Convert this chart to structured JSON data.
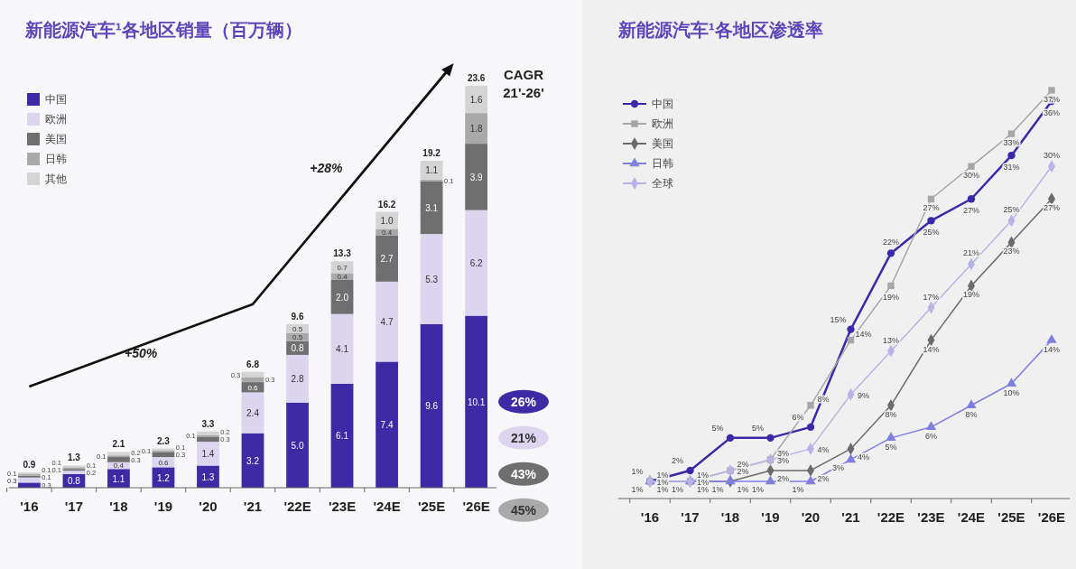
{
  "chart_data": [
    {
      "type": "bar",
      "stacked": true,
      "title": "新能源汽车¹各地区销量（百万辆）",
      "legend": "top left",
      "categories": [
        "'16",
        "'17",
        "'18",
        "'19",
        "'20",
        "'21",
        "'22E",
        "'23E",
        "'24E",
        "'25E",
        "'26E"
      ],
      "series": [
        {
          "name": "中国",
          "color": "#3f2aa6",
          "values": [
            0.3,
            0.8,
            1.1,
            1.2,
            1.3,
            3.2,
            5.0,
            6.1,
            7.4,
            9.6,
            10.1
          ],
          "value_labels": [
            "0.3",
            "0.8",
            "1.1",
            "1.2",
            "1.3",
            "3.2",
            "5.0",
            "6.1",
            "7.4",
            "9.6",
            "10.1"
          ]
        },
        {
          "name": "欧洲",
          "color": "#dcd5ef",
          "values": [
            0.3,
            0.2,
            0.4,
            0.6,
            1.4,
            2.4,
            2.8,
            4.1,
            4.7,
            5.3,
            6.2
          ],
          "value_labels": [
            "0.3",
            "0.2",
            "0.4",
            "0.6",
            "1.4",
            "2.4",
            "2.8",
            "4.1",
            "4.7",
            "5.3",
            "6.2"
          ]
        },
        {
          "name": "美国",
          "color": "#6f6f6f",
          "values": [
            0.1,
            0.1,
            0.3,
            0.3,
            0.3,
            0.6,
            0.8,
            2.0,
            2.7,
            3.1,
            3.9
          ],
          "value_labels": [
            "0.1",
            "0.1",
            "0.3",
            "0.3",
            "0.3",
            "0.6",
            "0.8",
            "2.0",
            "2.7",
            "3.1",
            "3.9"
          ]
        },
        {
          "name": "日韩",
          "color": "#a9a9a9",
          "values": [
            0.1,
            0.1,
            0.1,
            0.1,
            0.1,
            0.3,
            0.5,
            0.4,
            0.4,
            0.1,
            1.8
          ],
          "value_labels": [
            "0.1",
            "0.1",
            "0.1",
            "0.1",
            "0.1",
            "0.3",
            "0.5",
            "0.4",
            "0.4",
            "0.1",
            "1.8"
          ]
        },
        {
          "name": "其他",
          "color": "#d4d4d4",
          "values": [
            0.1,
            0.1,
            0.2,
            0.1,
            0.2,
            0.3,
            0.5,
            0.7,
            1.0,
            1.1,
            1.6
          ],
          "value_labels": [
            "0.1",
            "0.1",
            "0.2",
            "0.1",
            "0.2",
            "0.3",
            "0.5",
            "0.7",
            "1.0",
            "1.1",
            "1.6"
          ]
        }
      ],
      "totals": [
        "0.9",
        "1.3",
        "2.1",
        "2.3",
        "3.3",
        "6.8",
        "9.6",
        "13.3",
        "16.2",
        "19.2",
        "23.6"
      ],
      "annotations": [
        "CAGR\n21'-26'",
        "+50%",
        "+28%",
        "26%",
        "21%",
        "43%",
        "45%"
      ]
    },
    {
      "type": "line",
      "title": "新能源汽车¹各地区渗透率",
      "legend": "top left",
      "categories": [
        "'16",
        "'17",
        "'18",
        "'19",
        "'20",
        "'21",
        "'22E",
        "'23E",
        "'24E",
        "'25E",
        "'26E"
      ],
      "series": [
        {
          "name": "中国",
          "color": "#3b2aa8",
          "marker": "circle",
          "values": [
            1,
            2,
            5,
            5,
            6,
            15,
            22,
            25,
            27,
            31,
            36
          ],
          "value_labels": [
            "1%",
            "2%",
            "5%",
            "5%",
            "6%",
            "15%",
            "22%",
            "25%",
            "27%",
            "31%",
            "36%"
          ]
        },
        {
          "name": "欧洲",
          "color": "#a6a6a6",
          "marker": "square",
          "values": [
            1,
            1,
            2,
            3,
            8,
            14,
            19,
            27,
            30,
            33,
            37
          ],
          "value_labels": [
            "1%",
            "1%",
            "2%",
            "3%",
            "8%",
            "14%",
            "19%",
            "27%",
            "30%",
            "33%",
            "37%"
          ]
        },
        {
          "name": "美国",
          "color": "#6b6b6b",
          "marker": "diamond",
          "values": [
            1,
            1,
            1,
            2,
            2,
            4,
            8,
            14,
            19,
            23,
            27
          ],
          "value_labels": [
            "1%",
            "1%",
            "1%",
            "2%",
            "2%",
            "4%",
            "8%",
            "14%",
            "19%",
            "23%",
            "27%"
          ]
        },
        {
          "name": "日韩",
          "color": "#7f7fe0",
          "marker": "triangle",
          "values": [
            1,
            1,
            1,
            1,
            1,
            3,
            5,
            6,
            8,
            10,
            14
          ],
          "value_labels": [
            "1%",
            "1%",
            "1%",
            "1%",
            "1%",
            "3%",
            "5%",
            "6%",
            "8%",
            "10%",
            "14%"
          ]
        },
        {
          "name": "全球",
          "color": "#b9b3e8",
          "marker": "diamond",
          "values": [
            1,
            1,
            2,
            3,
            4,
            9,
            13,
            17,
            21,
            25,
            30
          ],
          "value_labels": [
            "1%",
            "1%",
            "2%",
            "3%",
            "4%",
            "9%",
            "13%",
            "17%",
            "21%",
            "25%",
            "30%"
          ]
        }
      ]
    }
  ]
}
